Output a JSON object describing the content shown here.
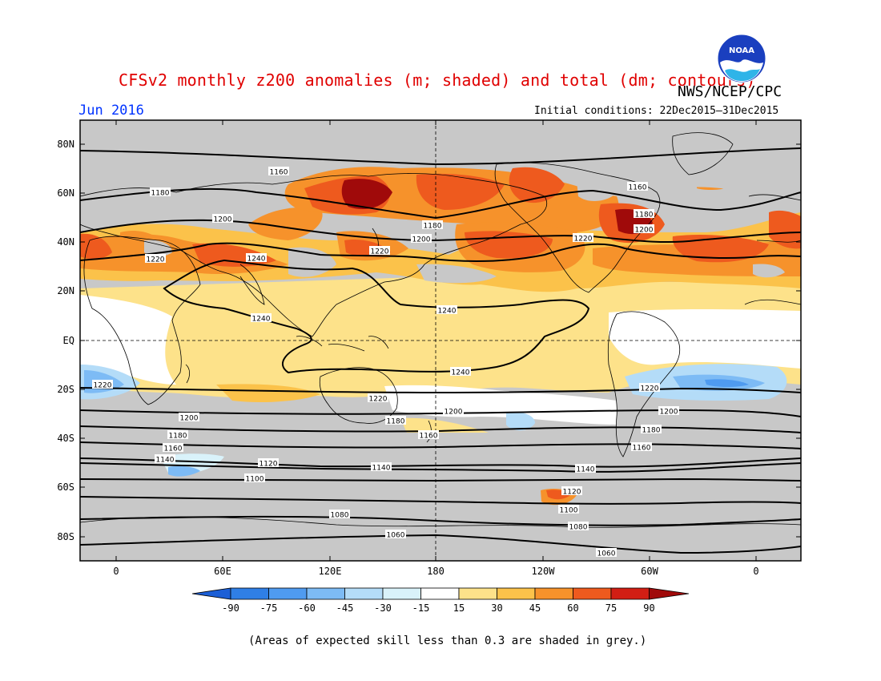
{
  "title": "CFSv2 monthly z200 anomalies (m; shaded) and total (dm; contours)",
  "agency": "NWS/NCEP/CPC",
  "month": "Jun 2016",
  "initial_conditions": "Initial conditions: 22Dec2015–31Dec2015",
  "footnote": "(Areas of expected skill less than 0.3 are shaded in grey.)",
  "logo": {
    "text": "NOAA",
    "icon": "noaa-logo"
  },
  "lat_labels": [
    "80N",
    "60N",
    "40N",
    "20N",
    "EQ",
    "20S",
    "40S",
    "60S",
    "80S"
  ],
  "lon_labels": [
    "0",
    "60E",
    "120E",
    "180",
    "120W",
    "60W",
    "0"
  ],
  "colorbar": {
    "labels": [
      "-90",
      "-75",
      "-60",
      "-45",
      "-30",
      "-15",
      "15",
      "30",
      "45",
      "60",
      "75",
      "90"
    ],
    "colors": [
      "#1c5fd6",
      "#2f7fe6",
      "#4f9bf0",
      "#7dbbf5",
      "#b4dcf8",
      "#d9f2fa",
      "#ffffff",
      "#fde28a",
      "#fbc24a",
      "#f6922b",
      "#ee5a1e",
      "#d21e14",
      "#a00a0a"
    ]
  },
  "contours": [
    {
      "label": "1160"
    },
    {
      "label": "1180"
    },
    {
      "label": "1200"
    },
    {
      "label": "1220"
    },
    {
      "label": "1240"
    },
    {
      "label": "1140"
    },
    {
      "label": "1120"
    },
    {
      "label": "1100"
    },
    {
      "label": "1080"
    },
    {
      "label": "1060"
    }
  ],
  "colors": {
    "title": "#e00000",
    "month": "#0033ff",
    "grey": "#c8c8c8"
  }
}
